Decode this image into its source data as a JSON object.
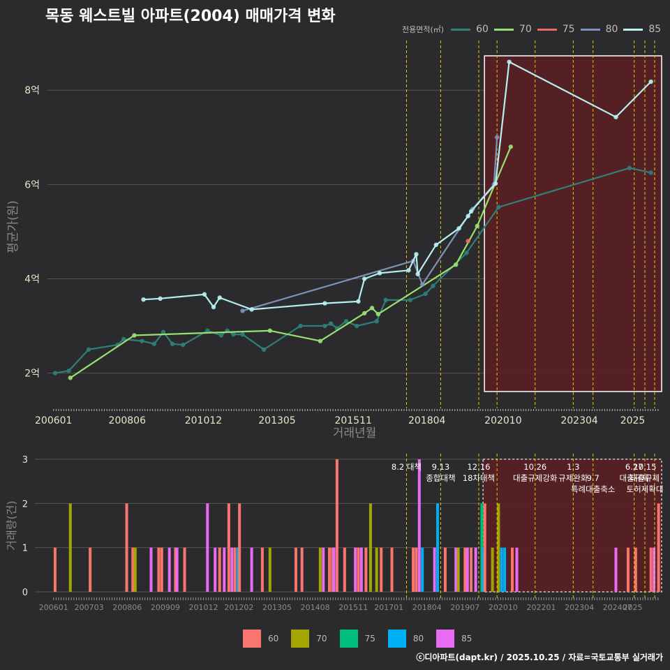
{
  "title": "목동 웨스트빌 아파트(2004) 매매가격 변화",
  "credit": "ⓒ디아파트(dapt.kr) / 2025.10.25 / 자료=국토교통부 실거래가",
  "colors": {
    "background": "#2b2b2d",
    "grid": "#555555",
    "axis_text": "#e8e6c8",
    "axis_title": "#8a8a8a",
    "policy_line": "#e8c800",
    "highlight_fill": "#5a1f24",
    "highlight_border": "#ffffff"
  },
  "legend_top": {
    "title": "전용면적(㎡)",
    "items": [
      {
        "label": "60",
        "color": "#2f7f7a"
      },
      {
        "label": "70",
        "color": "#98e071"
      },
      {
        "label": "75",
        "color": "#f06a6a"
      },
      {
        "label": "80",
        "color": "#7f92b8"
      },
      {
        "label": "85",
        "color": "#b6f0f0"
      }
    ]
  },
  "legend_bottom": {
    "items": [
      {
        "label": "60",
        "color": "#f8766d"
      },
      {
        "label": "70",
        "color": "#a3a500"
      },
      {
        "label": "75",
        "color": "#00bf7d"
      },
      {
        "label": "80",
        "color": "#00b0f6"
      },
      {
        "label": "85",
        "color": "#e76bf3"
      }
    ]
  },
  "chart_data": [
    {
      "type": "line",
      "title": "목동 웨스트빌 아파트(2004) 매매가격 변화",
      "xlabel": "거래년월",
      "ylabel": "평균가(원)",
      "x_tick_labels": [
        "200601",
        "200806",
        "201012",
        "201305",
        "201511",
        "201804",
        "202010",
        "202304",
        "2025"
      ],
      "y_tick_labels": [
        "2억",
        "4억",
        "6억",
        "8억"
      ],
      "y_ticks": [
        2,
        4,
        6,
        8
      ],
      "ylim": [
        1.55,
        8.95
      ],
      "xlim": [
        2005.8,
        2025.95
      ],
      "highlight_range": [
        2020.0,
        2025.95
      ],
      "policy_lines": [
        2017.58,
        2018.7,
        2019.95,
        2020.55,
        2021.8,
        2023.05,
        2023.7,
        2025.05,
        2025.4,
        2025.72
      ],
      "series": [
        {
          "name": "60",
          "points": [
            [
              2006.05,
              2.0
            ],
            [
              2006.5,
              2.05
            ],
            [
              2007.15,
              2.5
            ],
            [
              2008.1,
              2.6
            ],
            [
              2008.3,
              2.72
            ],
            [
              2008.9,
              2.68
            ],
            [
              2009.3,
              2.62
            ],
            [
              2009.6,
              2.87
            ],
            [
              2009.9,
              2.62
            ],
            [
              2010.25,
              2.6
            ],
            [
              2011.05,
              2.9
            ],
            [
              2011.5,
              2.8
            ],
            [
              2011.7,
              2.9
            ],
            [
              2011.9,
              2.82
            ],
            [
              2012.2,
              2.82
            ],
            [
              2012.9,
              2.5
            ],
            [
              2014.1,
              3.0
            ],
            [
              2014.9,
              3.0
            ],
            [
              2015.1,
              3.05
            ],
            [
              2015.3,
              2.95
            ],
            [
              2015.6,
              3.1
            ],
            [
              2015.95,
              3.0
            ],
            [
              2016.6,
              3.1
            ],
            [
              2016.9,
              3.55
            ],
            [
              2017.7,
              3.55
            ],
            [
              2018.2,
              3.68
            ],
            [
              2018.45,
              3.85
            ],
            [
              2019.55,
              4.55
            ],
            [
              2020.6,
              5.52
            ],
            [
              2024.9,
              6.35
            ],
            [
              2025.6,
              6.25
            ]
          ]
        },
        {
          "name": "70",
          "points": [
            [
              2006.55,
              1.9
            ],
            [
              2008.65,
              2.8
            ],
            [
              2013.1,
              2.9
            ],
            [
              2014.75,
              2.68
            ],
            [
              2016.2,
              3.27
            ],
            [
              2016.45,
              3.38
            ],
            [
              2016.65,
              3.25
            ],
            [
              2019.2,
              4.3
            ],
            [
              2019.9,
              5.12
            ],
            [
              2021.0,
              6.8
            ]
          ]
        },
        {
          "name": "75",
          "points": [
            [
              2019.6,
              4.8
            ]
          ]
        },
        {
          "name": "80",
          "points": [
            [
              2012.2,
              3.32
            ],
            [
              2017.8,
              4.38
            ],
            [
              2018.1,
              3.88
            ],
            [
              2019.75,
              5.48
            ],
            [
              2020.45,
              6.0
            ],
            [
              2020.55,
              7.0
            ]
          ]
        },
        {
          "name": "85",
          "points": [
            [
              2008.95,
              3.56
            ],
            [
              2009.5,
              3.58
            ],
            [
              2010.95,
              3.67
            ],
            [
              2011.25,
              3.4
            ],
            [
              2011.45,
              3.6
            ],
            [
              2012.5,
              3.35
            ],
            [
              2014.9,
              3.48
            ],
            [
              2016.0,
              3.52
            ],
            [
              2016.2,
              4.0
            ],
            [
              2016.7,
              4.12
            ],
            [
              2017.65,
              4.18
            ],
            [
              2017.9,
              4.52
            ],
            [
              2017.95,
              4.1
            ],
            [
              2018.55,
              4.72
            ],
            [
              2019.3,
              5.07
            ],
            [
              2019.6,
              5.33
            ],
            [
              2019.7,
              5.43
            ],
            [
              2020.5,
              6.02
            ],
            [
              2020.95,
              8.6
            ],
            [
              2024.45,
              7.43
            ],
            [
              2025.6,
              8.18
            ]
          ]
        }
      ]
    },
    {
      "type": "bar",
      "ylabel": "거래량(건)",
      "x_tick_labels": [
        "200601",
        "200703",
        "200806",
        "200909",
        "201012",
        "201202",
        "201305",
        "201408",
        "201511",
        "201701",
        "201804",
        "201907",
        "202010",
        "202201",
        "202304",
        "202407",
        "2025"
      ],
      "y_tick_labels": [
        "0",
        "1",
        "2",
        "3"
      ],
      "y_ticks": [
        0,
        1,
        2,
        3
      ],
      "ylim": [
        0,
        3
      ],
      "policy_lines": [
        2017.58,
        2018.7,
        2019.95,
        2020.55,
        2021.8,
        2023.05,
        2023.7,
        2025.05,
        2025.4,
        2025.72
      ],
      "highlight_range": [
        2020.0,
        2025.95
      ],
      "annotations": [
        {
          "x": 2017.58,
          "text": "8.2 대책",
          "line": 0
        },
        {
          "x": 2018.7,
          "text": "9.13",
          "line": 0
        },
        {
          "x": 2018.7,
          "text": "종합대책",
          "line": 1
        },
        {
          "x": 2019.95,
          "text": "12.16",
          "line": 0
        },
        {
          "x": 2019.95,
          "text": "18차대책",
          "line": 1
        },
        {
          "x": 2021.8,
          "text": "10.26",
          "line": 0
        },
        {
          "x": 2021.8,
          "text": "대출규제강화",
          "line": 1
        },
        {
          "x": 2023.05,
          "text": "1.3",
          "line": 0
        },
        {
          "x": 2023.05,
          "text": "규제완화",
          "line": 1
        },
        {
          "x": 2023.7,
          "text": "9.7",
          "line": 1
        },
        {
          "x": 2023.7,
          "text": "특례대출축소",
          "line": 2
        },
        {
          "x": 2025.05,
          "text": "6.27",
          "line": 0
        },
        {
          "x": 2025.05,
          "text": "대출규제",
          "line": 1
        },
        {
          "x": 2025.4,
          "text": "10.15",
          "line": 0
        },
        {
          "x": 2025.4,
          "text": "대출규제",
          "line": 1
        },
        {
          "x": 2025.4,
          "text": "토허제확대",
          "line": 2
        }
      ],
      "bars": [
        {
          "x": 2006.05,
          "value": 1,
          "series": "60"
        },
        {
          "x": 2006.55,
          "value": 2,
          "series": "70"
        },
        {
          "x": 2007.2,
          "value": 1,
          "series": "60"
        },
        {
          "x": 2008.4,
          "value": 2,
          "series": "60"
        },
        {
          "x": 2008.6,
          "value": 1,
          "series": "60"
        },
        {
          "x": 2008.68,
          "value": 1,
          "series": "70"
        },
        {
          "x": 2009.2,
          "value": 1,
          "series": "85"
        },
        {
          "x": 2009.45,
          "value": 1,
          "series": "60"
        },
        {
          "x": 2009.55,
          "value": 1,
          "series": "60"
        },
        {
          "x": 2009.8,
          "value": 1,
          "series": "85"
        },
        {
          "x": 2010.0,
          "value": 1,
          "series": "60"
        },
        {
          "x": 2010.05,
          "value": 1,
          "series": "85"
        },
        {
          "x": 2010.3,
          "value": 1,
          "series": "60"
        },
        {
          "x": 2011.05,
          "value": 2,
          "series": "85"
        },
        {
          "x": 2011.3,
          "value": 1,
          "series": "85"
        },
        {
          "x": 2011.45,
          "value": 1,
          "series": "60"
        },
        {
          "x": 2011.6,
          "value": 1,
          "series": "85"
        },
        {
          "x": 2011.75,
          "value": 2,
          "series": "60"
        },
        {
          "x": 2011.85,
          "value": 1,
          "series": "85"
        },
        {
          "x": 2011.95,
          "value": 1,
          "series": "60"
        },
        {
          "x": 2012.05,
          "value": 1,
          "series": "80"
        },
        {
          "x": 2012.1,
          "value": 2,
          "series": "60"
        },
        {
          "x": 2012.5,
          "value": 1,
          "series": "85"
        },
        {
          "x": 2012.85,
          "value": 1,
          "series": "60"
        },
        {
          "x": 2013.1,
          "value": 1,
          "series": "70"
        },
        {
          "x": 2013.95,
          "value": 1,
          "series": "60"
        },
        {
          "x": 2014.15,
          "value": 1,
          "series": "60"
        },
        {
          "x": 2014.75,
          "value": 1,
          "series": "70"
        },
        {
          "x": 2014.85,
          "value": 1,
          "series": "85"
        },
        {
          "x": 2015.05,
          "value": 1,
          "series": "60"
        },
        {
          "x": 2015.15,
          "value": 1,
          "series": "60"
        },
        {
          "x": 2015.2,
          "value": 1,
          "series": "85"
        },
        {
          "x": 2015.3,
          "value": 3,
          "series": "60"
        },
        {
          "x": 2015.55,
          "value": 1,
          "series": "60"
        },
        {
          "x": 2015.9,
          "value": 1,
          "series": "85"
        },
        {
          "x": 2016.0,
          "value": 1,
          "series": "60"
        },
        {
          "x": 2016.1,
          "value": 1,
          "series": "85"
        },
        {
          "x": 2016.25,
          "value": 1,
          "series": "60"
        },
        {
          "x": 2016.4,
          "value": 2,
          "series": "70"
        },
        {
          "x": 2016.6,
          "value": 1,
          "series": "70"
        },
        {
          "x": 2016.75,
          "value": 1,
          "series": "60"
        },
        {
          "x": 2017.1,
          "value": 1,
          "series": "60"
        },
        {
          "x": 2017.8,
          "value": 1,
          "series": "60"
        },
        {
          "x": 2017.9,
          "value": 1,
          "series": "60"
        },
        {
          "x": 2018.0,
          "value": 3,
          "series": "85"
        },
        {
          "x": 2018.1,
          "value": 1,
          "series": "80"
        },
        {
          "x": 2018.5,
          "value": 1,
          "series": "85"
        },
        {
          "x": 2018.6,
          "value": 2,
          "series": "80"
        },
        {
          "x": 2018.85,
          "value": 1,
          "series": "60"
        },
        {
          "x": 2019.2,
          "value": 1,
          "series": "85"
        },
        {
          "x": 2019.28,
          "value": 1,
          "series": "70"
        },
        {
          "x": 2019.5,
          "value": 1,
          "series": "60"
        },
        {
          "x": 2019.58,
          "value": 1,
          "series": "85"
        },
        {
          "x": 2019.7,
          "value": 1,
          "series": "60"
        },
        {
          "x": 2019.85,
          "value": 1,
          "series": "85"
        },
        {
          "x": 2020.05,
          "value": 2,
          "series": "75"
        },
        {
          "x": 2020.1,
          "value": 1,
          "series": "80"
        },
        {
          "x": 2020.15,
          "value": 2,
          "series": "60"
        },
        {
          "x": 2020.4,
          "value": 1,
          "series": "70"
        },
        {
          "x": 2020.6,
          "value": 2,
          "series": "70"
        },
        {
          "x": 2020.7,
          "value": 1,
          "series": "80"
        },
        {
          "x": 2020.8,
          "value": 1,
          "series": "80"
        },
        {
          "x": 2021.05,
          "value": 1,
          "series": "60"
        },
        {
          "x": 2021.2,
          "value": 1,
          "series": "85"
        },
        {
          "x": 2024.45,
          "value": 1,
          "series": "85"
        },
        {
          "x": 2024.85,
          "value": 1,
          "series": "60"
        },
        {
          "x": 2025.1,
          "value": 1,
          "series": "60"
        },
        {
          "x": 2025.6,
          "value": 1,
          "series": "60"
        },
        {
          "x": 2025.7,
          "value": 1,
          "series": "85"
        },
        {
          "x": 2025.85,
          "value": 2,
          "series": "60"
        }
      ]
    }
  ]
}
